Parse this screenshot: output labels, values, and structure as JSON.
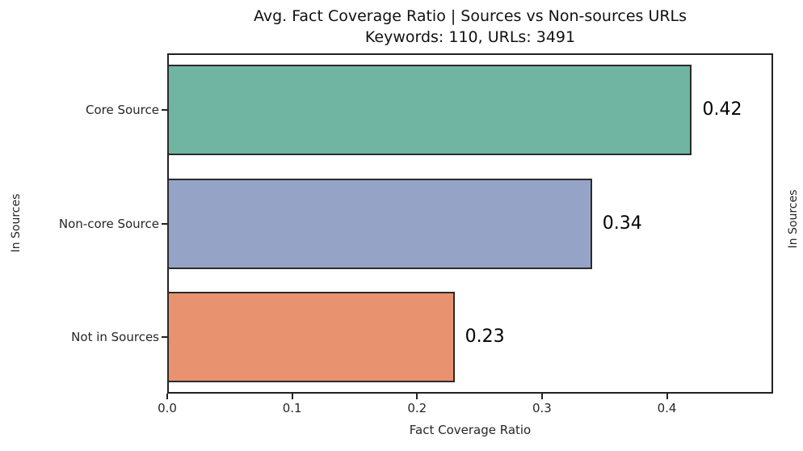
{
  "chart_data": {
    "type": "bar",
    "orientation": "horizontal",
    "title": "Avg. Fact Coverage Ratio | Sources vs Non-sources URLs",
    "subtitle": "Keywords: 110, URLs: 3491",
    "categories": [
      "Core Source",
      "Non-core Source",
      "Not in Sources"
    ],
    "values": [
      0.42,
      0.34,
      0.23
    ],
    "value_labels": [
      "0.42",
      "0.34",
      "0.23"
    ],
    "bar_colors": [
      "#6fb5a2",
      "#95a3c7",
      "#e9926f"
    ],
    "bar_edge_color": "#2b2b2b",
    "xlabel": "Fact Coverage Ratio",
    "ylabel_left": "In Sources",
    "ylabel_right": "In Sources",
    "xlim": [
      0,
      0.485
    ],
    "xticks": [
      0.0,
      0.1,
      0.2,
      0.3,
      0.4
    ],
    "xtick_labels": [
      "0.0",
      "0.1",
      "0.2",
      "0.3",
      "0.4"
    ],
    "grid": false,
    "legend": null,
    "background_color": "#ffffff",
    "spine_color": "#222222"
  }
}
